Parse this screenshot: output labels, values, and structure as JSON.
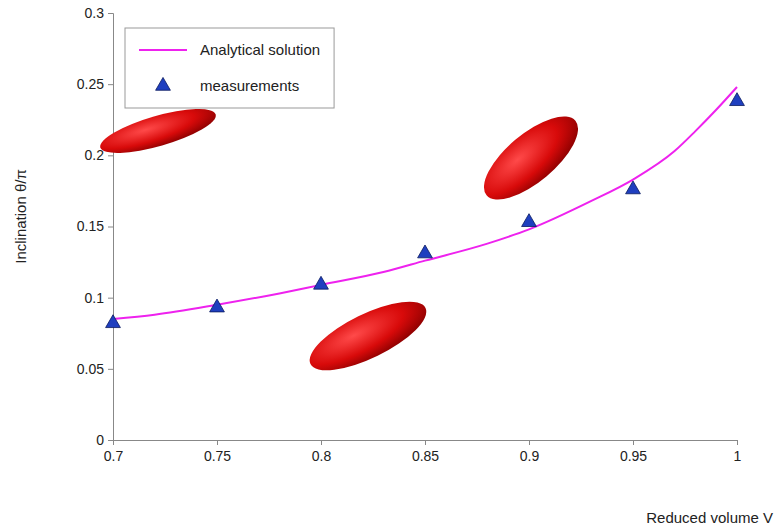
{
  "chart_data": {
    "type": "line",
    "x_label": "Reduced volume V",
    "y_label": "Inclination θ/π",
    "xlim": [
      0.7,
      1
    ],
    "ylim": [
      0,
      0.3
    ],
    "xticks": [
      0.7,
      0.75,
      0.8,
      0.85,
      0.9,
      0.95,
      1
    ],
    "yticks": [
      0,
      0.05,
      0.1,
      0.15,
      0.2,
      0.25,
      0.3
    ],
    "grid": false,
    "legend": "upper left",
    "series": [
      {
        "name": "Analytical solution",
        "type": "line",
        "color": "#ee22ee",
        "line_style": "solid",
        "x": [
          0.7,
          0.72,
          0.75,
          0.78,
          0.8,
          0.83,
          0.85,
          0.88,
          0.9,
          0.93,
          0.95,
          0.97,
          0.98,
          0.99,
          1
        ],
        "values": [
          0.085,
          0.088,
          0.095,
          0.103,
          0.109,
          0.118,
          0.126,
          0.138,
          0.148,
          0.168,
          0.183,
          0.203,
          0.217,
          0.232,
          0.248
        ]
      },
      {
        "name": "measurements",
        "type": "scatter",
        "color": "#1f3fbf",
        "marker": "triangle",
        "x": [
          0.7,
          0.75,
          0.8,
          0.85,
          0.9,
          0.95,
          1
        ],
        "values": [
          0.082,
          0.093,
          0.109,
          0.131,
          0.153,
          0.176,
          0.238
        ]
      }
    ]
  }
}
